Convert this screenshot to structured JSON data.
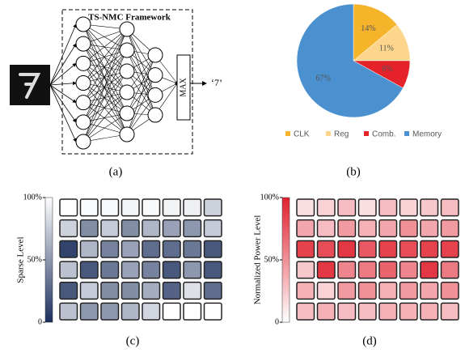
{
  "diagram": {
    "title": "TS-NMC Framework",
    "max_label": "MAX",
    "output": "‘7’",
    "caption": "(a)"
  },
  "chart_data": [
    {
      "type": "pie",
      "caption": "(b)",
      "categories": [
        "CLK",
        "Reg",
        "Comb.",
        "Memory"
      ],
      "values": [
        14,
        11,
        8,
        67
      ],
      "value_labels": [
        "14%",
        "11%",
        "8%",
        "67%"
      ],
      "colors": [
        "#f6b42a",
        "#fdd68c",
        "#e52129",
        "#4b91cf"
      ],
      "legend": "bottom"
    },
    {
      "type": "heatmap",
      "caption": "(c)",
      "colorbar_label": "Sparse Level",
      "colormap": [
        "#1b2f5e",
        "#ffffff"
      ],
      "zlim": [
        0,
        100
      ],
      "zticks": [
        0,
        {
          "value": 50,
          "label": "50%"
        },
        {
          "value": 100,
          "label": "100%"
        }
      ],
      "values": [
        [
          100,
          98,
          97,
          95,
          97,
          94,
          93,
          78
        ],
        [
          78,
          45,
          75,
          45,
          65,
          55,
          50,
          75
        ],
        [
          10,
          65,
          40,
          55,
          30,
          30,
          35,
          20
        ],
        [
          70,
          20,
          35,
          55,
          40,
          20,
          50,
          20
        ],
        [
          20,
          75,
          45,
          45,
          60,
          25,
          85,
          30
        ],
        [
          70,
          50,
          50,
          65,
          80,
          100,
          100,
          100
        ]
      ]
    },
    {
      "type": "heatmap",
      "caption": "(d)",
      "colorbar_label": "Normalized Power Level",
      "colormap": [
        "#ffffff",
        "#e0212f"
      ],
      "zlim": [
        0,
        100
      ],
      "zticks": [
        0,
        {
          "value": 50,
          "label": "50%"
        },
        {
          "value": 100,
          "label": "100%"
        }
      ],
      "values": [
        [
          15,
          20,
          30,
          15,
          30,
          20,
          25,
          30
        ],
        [
          40,
          30,
          45,
          35,
          40,
          50,
          40,
          45
        ],
        [
          85,
          80,
          90,
          75,
          85,
          80,
          85,
          85
        ],
        [
          25,
          90,
          55,
          60,
          70,
          55,
          90,
          60
        ],
        [
          35,
          20,
          45,
          50,
          35,
          45,
          40,
          50
        ],
        [
          30,
          35,
          30,
          30,
          35,
          35,
          35,
          30
        ]
      ]
    }
  ]
}
